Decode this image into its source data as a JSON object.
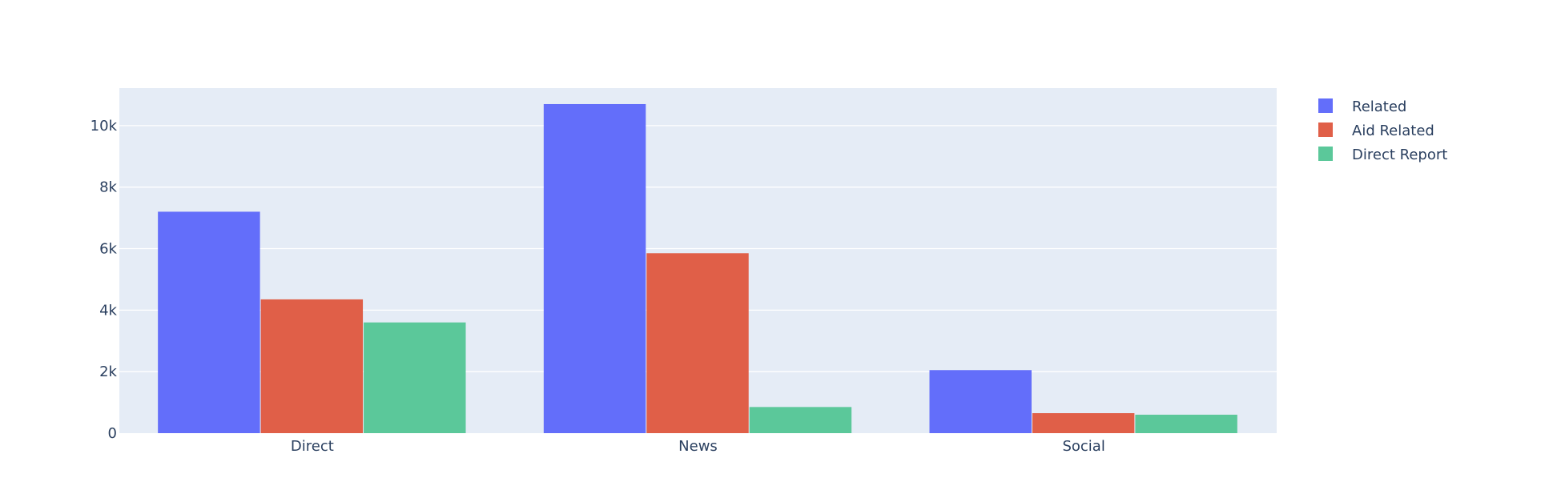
{
  "chart_data": {
    "type": "bar",
    "categories": [
      "Direct",
      "News",
      "Social"
    ],
    "series": [
      {
        "name": "Related",
        "values": [
          7200,
          10700,
          2050
        ],
        "color": "#636efa"
      },
      {
        "name": "Aid Related",
        "values": [
          4350,
          5850,
          650
        ],
        "color": "#e05f48"
      },
      {
        "name": "Direct Report",
        "values": [
          3600,
          850,
          600
        ],
        "color": "#5bc89a"
      }
    ],
    "ylim": [
      0,
      11220
    ],
    "yticks": [
      0,
      2000,
      4000,
      6000,
      8000,
      10000
    ],
    "ytick_labels": [
      "0",
      "2k",
      "4k",
      "6k",
      "8k",
      "10k"
    ],
    "legend_position": "top-right",
    "grid": true,
    "plot_background": "#e5ecf6"
  }
}
